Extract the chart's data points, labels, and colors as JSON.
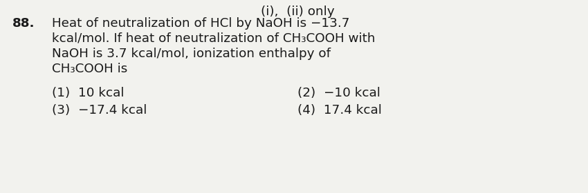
{
  "question_number": "88.",
  "line1": "Heat of neutralization of HCl by NaOH is −13.7",
  "line2": "kcal/mol. If heat of neutralization of CH₃COOH with",
  "line3": "NaOH is 3.7 kcal/mol, ionization enthalpy of",
  "line4": "CH₃COOH is",
  "opt1": "(1)  10 kcal",
  "opt2": "(2)  −10 kcal",
  "opt3": "(3)  −17.4 kcal",
  "opt4": "(4)  17.4 kcal",
  "header_right": "(i),  (ii) only",
  "bg_color": "#f2f2ee",
  "text_color": "#1a1a1a",
  "font_size_main": 13.2
}
